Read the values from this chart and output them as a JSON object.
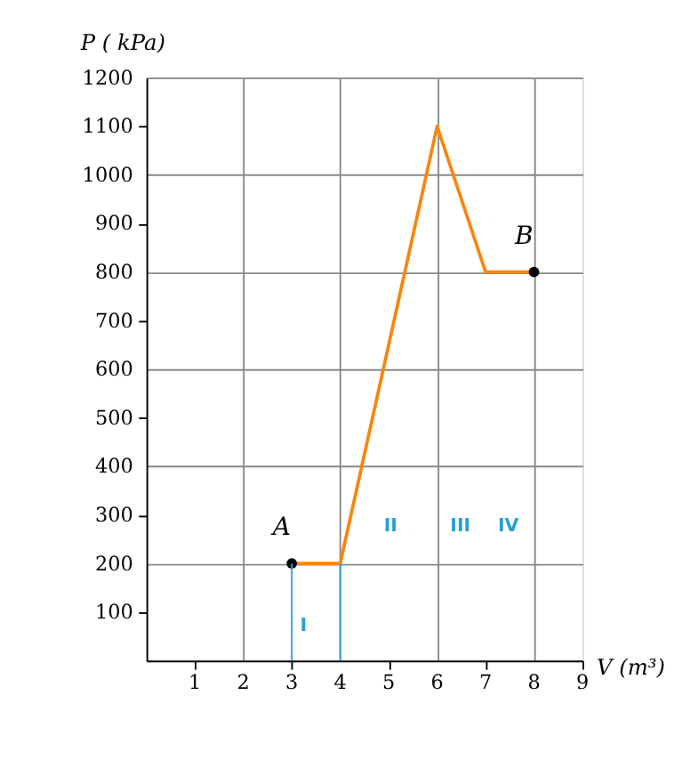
{
  "chart_data": {
    "type": "line",
    "xlabel": "V (m³)",
    "ylabel": "P ( kPa)",
    "xlim": [
      0,
      9
    ],
    "ylim": [
      0,
      1200
    ],
    "xticks": [
      1,
      2,
      3,
      4,
      5,
      6,
      7,
      8,
      9
    ],
    "yticks": [
      100,
      200,
      300,
      400,
      500,
      600,
      700,
      800,
      900,
      1000,
      1100,
      1200
    ],
    "grid": true,
    "series": [
      {
        "color": "#f7860f",
        "x": [
          3,
          4,
          6,
          7,
          8
        ],
        "values": [
          200,
          200,
          1100,
          800,
          800
        ]
      },
      {
        "type": "scatter",
        "color": "#000000",
        "x": [
          3,
          8
        ],
        "values": [
          200,
          800
        ],
        "marker": "circle"
      },
      {
        "color": "#2a9fd6",
        "x": [
          3,
          3
        ],
        "values": [
          0,
          200
        ]
      },
      {
        "color": "#2a9fd6",
        "x": [
          4,
          4
        ],
        "values": [
          0,
          200
        ]
      }
    ],
    "annotations": [
      {
        "text": "A",
        "x": 3,
        "y": 200
      },
      {
        "text": "B",
        "x": 8,
        "y": 800
      },
      "I",
      "II",
      "III",
      "IV"
    ]
  }
}
